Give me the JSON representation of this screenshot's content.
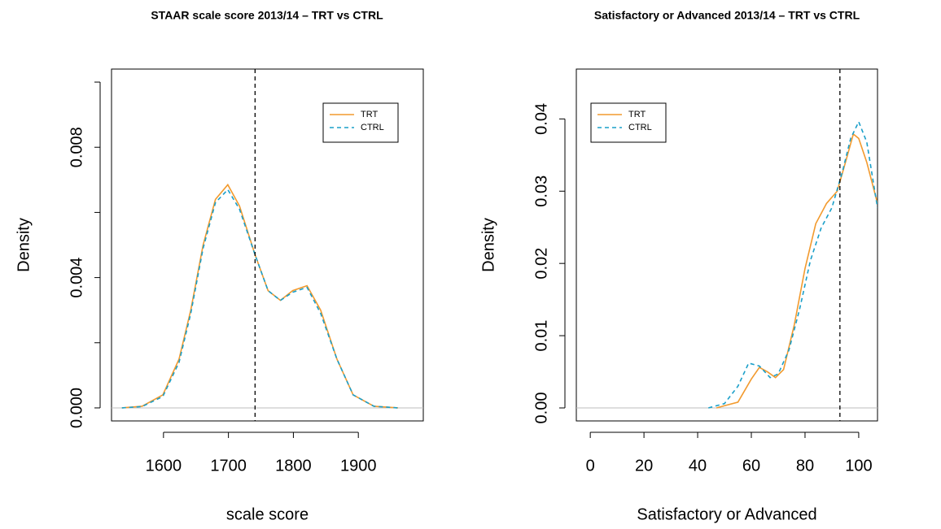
{
  "chart_data": [
    {
      "type": "line",
      "title": "STAAR scale score 2013/14 – TRT vs CTRL",
      "x_label": "scale score",
      "y_label": "Density",
      "xlim": [
        1520,
        2000
      ],
      "ylim": [
        -0.0004,
        0.0104
      ],
      "xticks": [
        1600,
        1700,
        1800,
        1900
      ],
      "yticks": [
        {
          "value": 0,
          "label": "0.000"
        },
        {
          "value": 0.002,
          "label": null
        },
        {
          "value": 0.004,
          "label": "0.004"
        },
        {
          "value": 0.006,
          "label": null
        },
        {
          "value": 0.008,
          "label": "0.008"
        },
        {
          "value": 0.01,
          "label": null
        }
      ],
      "vline": 1741,
      "zero_line": true,
      "legend": "topright",
      "series": [
        {
          "name": "TRT",
          "color": "#f29a2e",
          "dash": false,
          "x": [
            1536,
            1567,
            1599,
            1624,
            1642,
            1661,
            1680,
            1699,
            1717,
            1741,
            1761,
            1780,
            1799,
            1821,
            1842,
            1867,
            1892,
            1924,
            1961
          ],
          "values": [
            0,
            5e-05,
            0.0004,
            0.0015,
            0.003,
            0.005,
            0.0064,
            0.00685,
            0.0062,
            0.0047,
            0.0036,
            0.0033,
            0.0036,
            0.00375,
            0.003,
            0.0015,
            0.0004,
            5e-05,
            0
          ]
        },
        {
          "name": "CTRL",
          "color": "#1a9fc9",
          "dash": true,
          "x": [
            1536,
            1567,
            1599,
            1624,
            1642,
            1661,
            1680,
            1699,
            1717,
            1741,
            1761,
            1780,
            1799,
            1821,
            1842,
            1867,
            1892,
            1924,
            1961
          ],
          "values": [
            0,
            4e-05,
            0.00035,
            0.0014,
            0.0029,
            0.0049,
            0.0063,
            0.0067,
            0.0061,
            0.0047,
            0.0036,
            0.0033,
            0.00355,
            0.0037,
            0.0029,
            0.0015,
            0.0004,
            5e-05,
            0
          ]
        }
      ]
    },
    {
      "type": "line",
      "title": "Satisfactory or Advanced 2013/14 – TRT vs CTRL",
      "x_label": "Satisfactory or Advanced",
      "y_label": "Density",
      "xlim": [
        -5.2,
        107
      ],
      "ylim": [
        -0.0018,
        0.0469
      ],
      "xticks": [
        0,
        20,
        40,
        60,
        80,
        100
      ],
      "yticks": [
        {
          "value": 0,
          "label": "0.00"
        },
        0.01,
        0.02,
        0.03,
        0.04
      ],
      "vline": 93,
      "zero_line": true,
      "legend": "topleft",
      "series": [
        {
          "name": "TRT",
          "color": "#f29a2e",
          "dash": false,
          "x": [
            47,
            55,
            60,
            63,
            66,
            69,
            72,
            76,
            80,
            84,
            88,
            92,
            95,
            98,
            100,
            103,
            107
          ],
          "values": [
            0,
            0.0008,
            0.004,
            0.0056,
            0.005,
            0.0042,
            0.0053,
            0.0115,
            0.0193,
            0.0255,
            0.0283,
            0.03,
            0.0339,
            0.0379,
            0.0373,
            0.034,
            0.0283
          ]
        },
        {
          "name": "CTRL",
          "color": "#1a9fc9",
          "dash": true,
          "x": [
            44,
            50,
            55,
            59,
            63,
            67,
            70,
            74,
            78,
            82,
            86,
            90,
            94,
            97,
            100,
            103,
            107
          ],
          "values": [
            0,
            0.0006,
            0.003,
            0.0062,
            0.0058,
            0.0042,
            0.0047,
            0.008,
            0.0137,
            0.0204,
            0.0249,
            0.0277,
            0.0328,
            0.0373,
            0.0396,
            0.0368,
            0.0277
          ]
        }
      ]
    }
  ]
}
